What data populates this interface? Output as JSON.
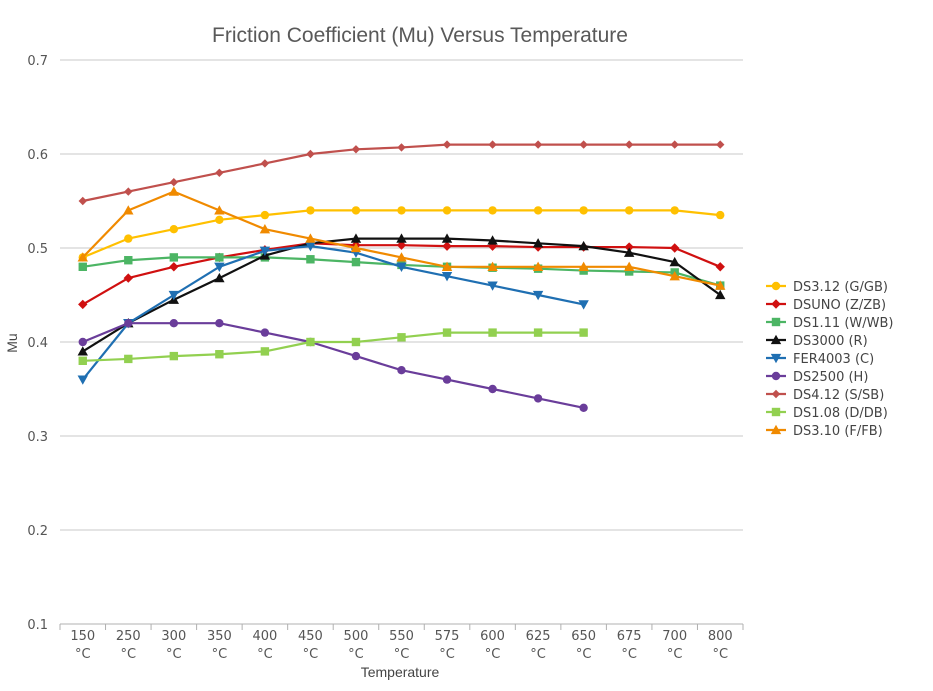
{
  "chart_data": {
    "type": "line",
    "title": "Friction Coefficient (Mu) Versus Temperature",
    "xlabel": "Temperature",
    "ylabel": "Mu",
    "ylim": [
      0.1,
      0.7
    ],
    "yticks": [
      "0.1",
      "0.2",
      "0.3",
      "0.4",
      "0.5",
      "0.6",
      "0.7"
    ],
    "grid": "horizontal",
    "legend_position": "right",
    "x_unit": "°C",
    "categories": [
      "150",
      "250",
      "300",
      "350",
      "400",
      "450",
      "500",
      "550",
      "575",
      "600",
      "625",
      "650",
      "675",
      "700",
      "800"
    ],
    "series": [
      {
        "name": "DS3.12 (G/GB)",
        "color": "#FFC000",
        "marker": "circle",
        "values": [
          0.49,
          0.51,
          0.52,
          0.53,
          0.535,
          0.54,
          0.54,
          0.54,
          0.54,
          0.54,
          0.54,
          0.54,
          0.54,
          0.54,
          0.535
        ]
      },
      {
        "name": "DSUNO (Z/ZB)",
        "color": "#D01010",
        "marker": "diamond",
        "values": [
          0.44,
          0.468,
          0.48,
          0.49,
          0.498,
          0.505,
          0.503,
          0.503,
          0.502,
          0.502,
          0.501,
          0.501,
          0.501,
          0.5,
          0.48
        ]
      },
      {
        "name": "DS1.11 (W/WB)",
        "color": "#4CB564",
        "marker": "square",
        "values": [
          0.48,
          0.487,
          0.49,
          0.49,
          0.49,
          0.488,
          0.485,
          0.482,
          0.48,
          0.479,
          0.478,
          0.476,
          0.475,
          0.474,
          0.46
        ]
      },
      {
        "name": "DS3000 (R)",
        "color": "#111111",
        "marker": "triangle-up",
        "values": [
          0.39,
          0.42,
          0.445,
          0.468,
          0.492,
          0.505,
          0.51,
          0.51,
          0.51,
          0.508,
          0.505,
          0.502,
          0.495,
          0.485,
          0.45
        ]
      },
      {
        "name": "FER4003 (C)",
        "color": "#1F6FB2",
        "marker": "triangle-down",
        "values": [
          0.36,
          0.42,
          0.45,
          0.48,
          0.497,
          0.502,
          0.495,
          0.48,
          0.47,
          0.46,
          0.45,
          0.44,
          null,
          null,
          null
        ]
      },
      {
        "name": "DS2500 (H)",
        "color": "#6A3D9A",
        "marker": "circle",
        "values": [
          0.4,
          0.42,
          0.42,
          0.42,
          0.41,
          0.4,
          0.385,
          0.37,
          0.36,
          0.35,
          0.34,
          0.33,
          null,
          null,
          null
        ]
      },
      {
        "name": "DS4.12 (S/SB)",
        "color": "#C0504D",
        "marker": "diamond-small",
        "values": [
          0.55,
          0.56,
          0.57,
          0.58,
          0.59,
          0.6,
          0.605,
          0.607,
          0.61,
          0.61,
          0.61,
          0.61,
          0.61,
          0.61,
          0.61
        ]
      },
      {
        "name": "DS1.08 (D/DB)",
        "color": "#92D050",
        "marker": "square",
        "values": [
          0.38,
          0.382,
          0.385,
          0.387,
          0.39,
          0.4,
          0.4,
          0.405,
          0.41,
          0.41,
          0.41,
          0.41,
          null,
          null,
          null
        ]
      },
      {
        "name": "DS3.10 (F/FB)",
        "color": "#F08A00",
        "marker": "triangle-up",
        "values": [
          0.49,
          0.54,
          0.56,
          0.54,
          0.52,
          0.51,
          0.5,
          0.49,
          0.48,
          0.48,
          0.48,
          0.48,
          0.48,
          0.47,
          0.46
        ]
      }
    ]
  }
}
